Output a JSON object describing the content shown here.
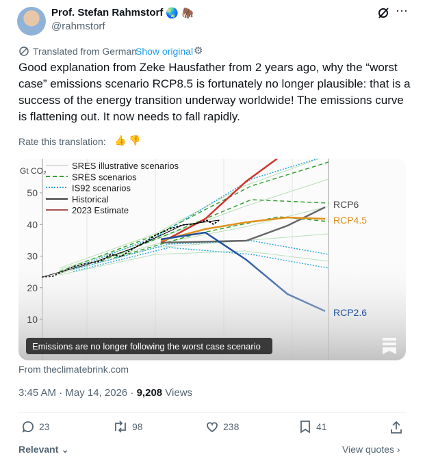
{
  "post": {
    "author_name": "Prof. Stefan Rahmstorf",
    "handle": "@rahmstorf",
    "translation_note": "Translated from German",
    "show_original": "Show original",
    "text": "Good explanation from Zeke Hausfather from 2 years ago, why the “worst case” emissions scenario RCP8.5 is fortunately no longer plausible: that is a success of the energy transition underway worldwide! The emissions curve is flattening out. It now needs to fall rapidly.",
    "rate_translation": "Rate this translation:"
  },
  "media": {
    "y_unit": "Gt CO₂",
    "yticks": [
      10,
      20,
      30,
      40,
      50
    ],
    "legend": [
      "SRES illustrative scenarios",
      "SRES scenarios",
      "IS92 scenarios",
      "Historical",
      "2023 Estimate"
    ],
    "scenario_labels": [
      "RCP6",
      "RCP4.5",
      "RCP2.6"
    ],
    "caption": "Emissions are no longer following the worst case scenario"
  },
  "source": "From theclimatebrink.com",
  "meta": {
    "timestamp": "3:45 AM · May 14, 2026 · ",
    "views_count": "9,208",
    "views_label": " Views"
  },
  "actions": {
    "replies": 23,
    "reposts": 98,
    "likes": 238,
    "bookmarks": 41
  },
  "footer": {
    "relevant": "Relevant",
    "view_quotes": "View quotes"
  }
}
